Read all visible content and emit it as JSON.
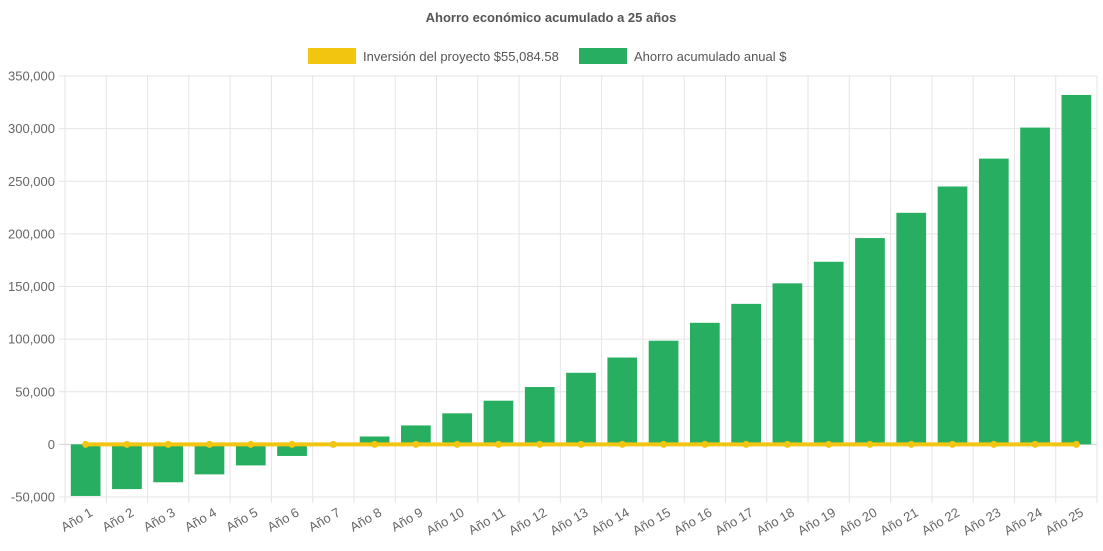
{
  "chart_data": {
    "type": "bar",
    "title": "Ahorro económico acumulado a 25 años",
    "xlabel": "",
    "ylabel": "",
    "categories": [
      "Año 1",
      "Año 2",
      "Año 3",
      "Año 4",
      "Año 5",
      "Año 6",
      "Año 7",
      "Año 8",
      "Año 9",
      "Año 10",
      "Año 11",
      "Año 12",
      "Año 13",
      "Año 14",
      "Año 15",
      "Año 16",
      "Año 17",
      "Año 18",
      "Año 19",
      "Año 20",
      "Año 21",
      "Año 22",
      "Año 23",
      "Año 24",
      "Año 25"
    ],
    "ylim": [
      -50000,
      350000
    ],
    "yticks": [
      -50000,
      0,
      50000,
      100000,
      150000,
      200000,
      250000,
      300000,
      350000
    ],
    "ytick_labels": [
      "-50,000",
      "0",
      "50,000",
      "100,000",
      "150,000",
      "200,000",
      "250,000",
      "300,000",
      "350,000"
    ],
    "grid": true,
    "legend_position": "top-center",
    "series": [
      {
        "name": "Inversión del proyecto $55,084.58",
        "type": "line",
        "color": "#f2c511",
        "values": [
          0,
          0,
          0,
          0,
          0,
          0,
          0,
          0,
          0,
          0,
          0,
          0,
          0,
          0,
          0,
          0,
          0,
          0,
          0,
          0,
          0,
          0,
          0,
          0,
          0
        ]
      },
      {
        "name": "Ahorro acumulado anual $",
        "type": "bar",
        "color": "#27ae60",
        "values": [
          -49000,
          -42500,
          -36000,
          -28500,
          -20000,
          -11000,
          -1500,
          7500,
          18000,
          29500,
          41500,
          54500,
          68000,
          82500,
          98500,
          115500,
          133500,
          153000,
          173500,
          196000,
          220000,
          245000,
          271500,
          301000,
          332000
        ]
      }
    ]
  }
}
